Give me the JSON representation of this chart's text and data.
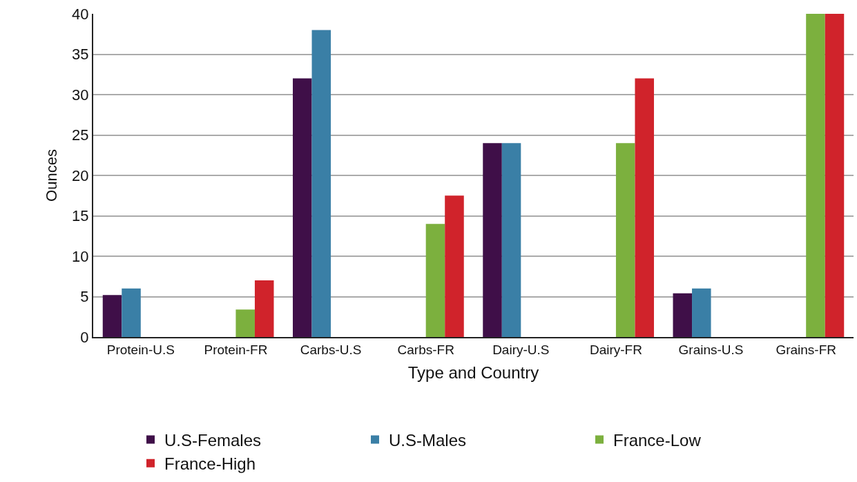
{
  "chart_data": {
    "type": "bar",
    "xlabel": "Type and Country",
    "ylabel": "Ounces",
    "categories": [
      "Protein-U.S",
      "Protein-FR",
      "Carbs-U.S",
      "Carbs-FR",
      "Dairy-U.S",
      "Dairy-FR",
      "Grains-U.S",
      "Grains-FR"
    ],
    "series": [
      {
        "name": "U.S-Females",
        "color": "#3f0f48",
        "values": [
          5.2,
          null,
          32,
          null,
          24,
          null,
          5.4,
          null
        ]
      },
      {
        "name": "U.S-Males",
        "color": "#3a7fa6",
        "values": [
          6,
          null,
          38,
          null,
          24,
          null,
          6,
          null
        ]
      },
      {
        "name": "France-Low",
        "color": "#7cb03e",
        "values": [
          null,
          3.4,
          null,
          14,
          null,
          24,
          null,
          40
        ]
      },
      {
        "name": "France-High",
        "color": "#d0232b",
        "values": [
          null,
          7,
          null,
          17.5,
          null,
          32,
          null,
          40
        ]
      }
    ],
    "ylim": [
      0,
      40
    ],
    "yticks": [
      0,
      5,
      10,
      15,
      20,
      25,
      30,
      35,
      40
    ],
    "grid": "y",
    "legend": "bottom"
  }
}
